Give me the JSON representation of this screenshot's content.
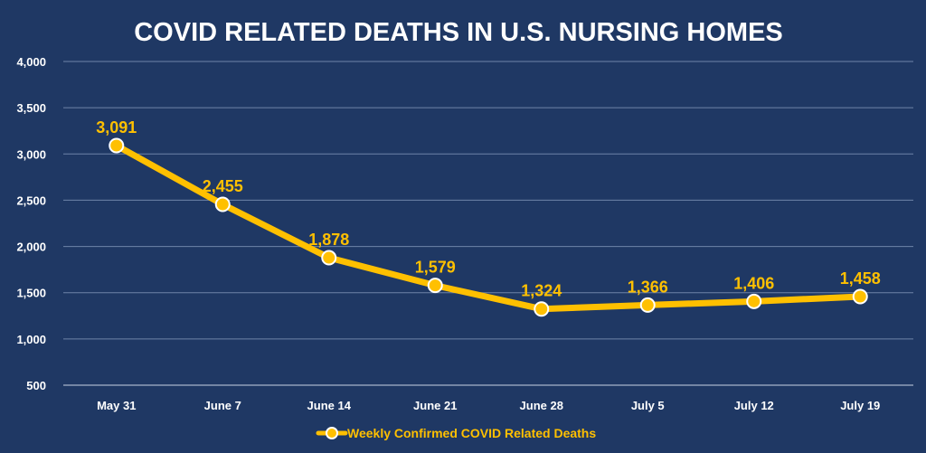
{
  "colors": {
    "background": "#1f3864",
    "series": "#ffc000",
    "text": "#ffffff",
    "gridline": "#6f83a8",
    "axis_line": "#c9d2e3"
  },
  "chart_data": {
    "type": "line",
    "title": "COVID RELATED DEATHS IN U.S. NURSING HOMES",
    "categories": [
      "May 31",
      "June 7",
      "June 14",
      "June 21",
      "June 28",
      "July 5",
      "July 12",
      "July 19"
    ],
    "series": [
      {
        "name": "Weekly Confirmed COVID Related Deaths",
        "values": [
          3091,
          2455,
          1878,
          1579,
          1324,
          1366,
          1406,
          1458
        ],
        "value_labels": [
          "3,091",
          "2,455",
          "1,878",
          "1,579",
          "1,324",
          "1,366",
          "1,406",
          "1,458"
        ]
      }
    ],
    "ylim": [
      500,
      4000
    ],
    "ytick_values": [
      500,
      1000,
      1500,
      2000,
      2500,
      3000,
      3500,
      4000
    ],
    "ytick_labels": [
      "500",
      "1,000",
      "1,500",
      "2,000",
      "2,500",
      "3,000",
      "3,500",
      "4,000"
    ],
    "xlabel": "",
    "ylabel": "",
    "grid": true,
    "legend_position": "bottom",
    "markers": true,
    "data_labels": true
  }
}
